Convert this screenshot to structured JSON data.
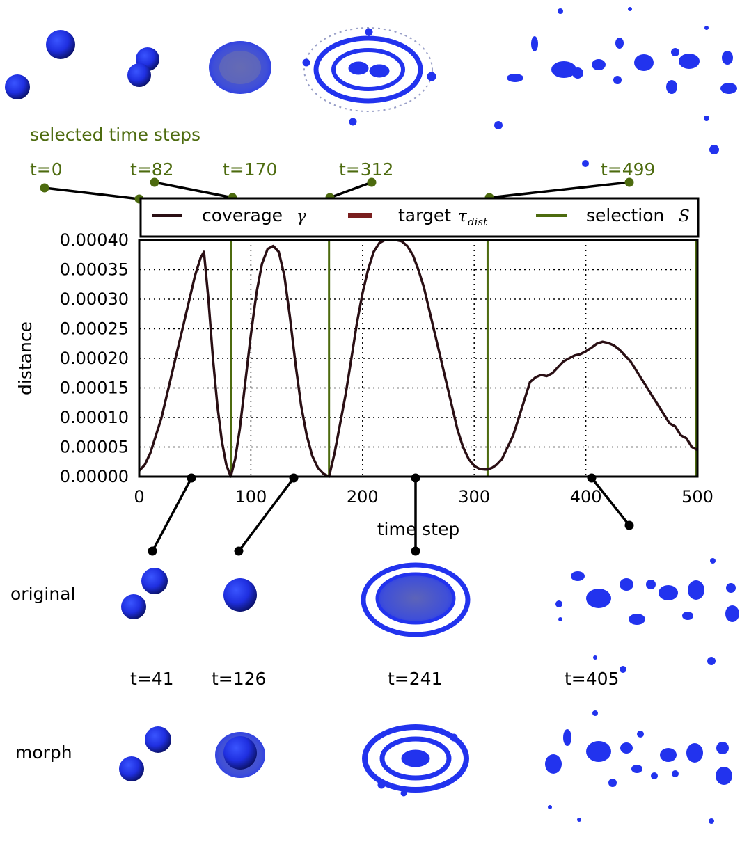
{
  "colors": {
    "coverage": "#2a0f14",
    "target": "#7a1f1f",
    "selection": "#4d6b0f",
    "blob": "#2233ee",
    "label_green": "#4d6b0f"
  },
  "selected_header": "selected time steps",
  "selected_labels": [
    "t=0",
    "t=82",
    "t=170",
    "t=312",
    "t=499"
  ],
  "sample_labels": [
    "t=41",
    "t=126",
    "t=241",
    "t=405"
  ],
  "row_labels": {
    "original": "original",
    "morph": "morph"
  },
  "chart_data": {
    "type": "line",
    "xlabel": "time step",
    "ylabel": "distance",
    "xlim": [
      0,
      500
    ],
    "ylim": [
      0,
      0.0004
    ],
    "xticks": [
      "0",
      "100",
      "200",
      "300",
      "400",
      "500"
    ],
    "yticks": [
      "0.00000",
      "0.00005",
      "0.00010",
      "0.00015",
      "0.00020",
      "0.00025",
      "0.00030",
      "0.00035",
      "0.00040"
    ],
    "grid": true,
    "legend_position": "top (above plot)",
    "legend": {
      "coverage_label": "coverage",
      "coverage_symbol": "γ",
      "target_label": "target",
      "target_symbol": "τ",
      "target_subscript": "dist",
      "selection_label": "selection",
      "selection_symbol": "S"
    },
    "target_value": 0.0004,
    "selection_x": [
      0,
      82,
      170,
      312,
      499
    ],
    "series": [
      {
        "name": "coverage γ",
        "x": [
          0,
          5,
          10,
          15,
          20,
          25,
          30,
          35,
          40,
          45,
          50,
          55,
          58,
          62,
          66,
          70,
          74,
          78,
          82,
          86,
          90,
          95,
          100,
          105,
          110,
          115,
          120,
          125,
          130,
          135,
          140,
          145,
          150,
          155,
          160,
          165,
          170,
          175,
          180,
          185,
          190,
          195,
          200,
          205,
          210,
          215,
          220,
          225,
          230,
          235,
          240,
          245,
          250,
          255,
          260,
          265,
          270,
          275,
          280,
          285,
          290,
          295,
          300,
          305,
          310,
          312,
          316,
          320,
          325,
          330,
          335,
          340,
          345,
          350,
          355,
          360,
          365,
          370,
          375,
          380,
          385,
          390,
          395,
          400,
          405,
          410,
          415,
          420,
          425,
          430,
          435,
          440,
          445,
          450,
          455,
          460,
          465,
          470,
          475,
          480,
          485,
          490,
          495,
          500
        ],
        "y": [
          1e-05,
          2e-05,
          4e-05,
          7e-05,
          0.0001,
          0.00014,
          0.00018,
          0.00022,
          0.00026,
          0.0003,
          0.00034,
          0.00037,
          0.00038,
          0.0003,
          0.0002,
          0.00012,
          6e-05,
          2e-05,
          0.0,
          3e-05,
          8e-05,
          0.00016,
          0.00024,
          0.00031,
          0.00036,
          0.000385,
          0.00039,
          0.00038,
          0.00034,
          0.00027,
          0.00019,
          0.00012,
          7e-05,
          3.5e-05,
          1.5e-05,
          5e-06,
          0.0,
          4e-05,
          9e-05,
          0.00014,
          0.0002,
          0.00026,
          0.00031,
          0.00035,
          0.00038,
          0.000395,
          0.0004,
          0.0004,
          0.0004,
          0.000398,
          0.00039,
          0.000375,
          0.00035,
          0.00032,
          0.00028,
          0.00024,
          0.0002,
          0.00016,
          0.00012,
          8e-05,
          5e-05,
          3e-05,
          1.8e-05,
          1.3e-05,
          1.2e-05,
          1.2e-05,
          1.5e-05,
          2e-05,
          3e-05,
          5e-05,
          7e-05,
          0.0001,
          0.00013,
          0.00016,
          0.000168,
          0.000172,
          0.00017,
          0.000175,
          0.000185,
          0.000195,
          0.0002,
          0.000205,
          0.000207,
          0.000212,
          0.000218,
          0.000225,
          0.000228,
          0.000226,
          0.000222,
          0.000215,
          0.000205,
          0.000195,
          0.00018,
          0.000165,
          0.00015,
          0.000135,
          0.00012,
          0.000105,
          9e-05,
          8.5e-05,
          7e-05,
          6.5e-05,
          5e-05,
          4.5e-05
        ]
      }
    ]
  }
}
